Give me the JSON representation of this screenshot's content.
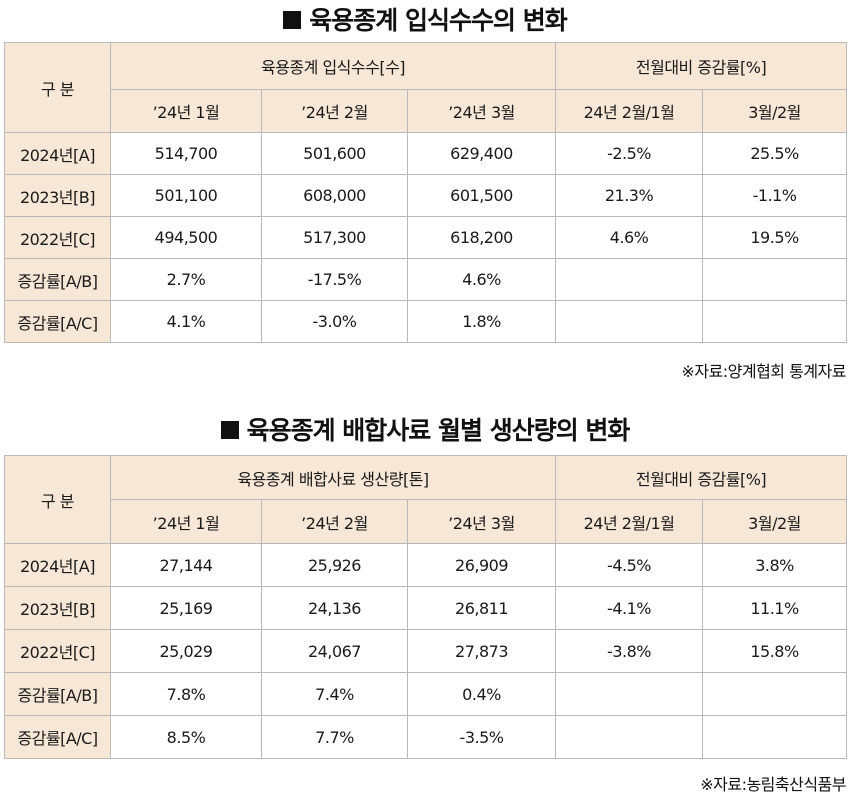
{
  "table1": {
    "title": "육용종계 입식수수의 변화",
    "header": {
      "category": "구 분",
      "group1": "육용종계 입식수수[수]",
      "group2": "전월대비 증감률[%]",
      "months": [
        "’24년 1월",
        "’24년 2월",
        "’24년 3월"
      ],
      "changes": [
        "24년 2월/1월",
        "3월/2월"
      ]
    },
    "rows": [
      {
        "label": "2024년[A]",
        "values": [
          "514,700",
          "501,600",
          "629,400",
          "-2.5%",
          "25.5%"
        ]
      },
      {
        "label": "2023년[B]",
        "values": [
          "501,100",
          "608,000",
          "601,500",
          "21.3%",
          "-1.1%"
        ]
      },
      {
        "label": "2022년[C]",
        "values": [
          "494,500",
          "517,300",
          "618,200",
          "4.6%",
          "19.5%"
        ]
      },
      {
        "label": "증감률[A/B]",
        "values": [
          "2.7%",
          "-17.5%",
          "4.6%",
          "",
          ""
        ]
      },
      {
        "label": "증감률[A/C]",
        "values": [
          "4.1%",
          "-3.0%",
          "1.8%",
          "",
          ""
        ]
      }
    ],
    "source": "※자료:양계협회 통계자료"
  },
  "table2": {
    "title": "육용종계 배합사료 월별 생산량의 변화",
    "header": {
      "category": "구 분",
      "group1": "육용종계 배합사료 생산량[톤]",
      "group2": "전월대비 증감률[%]",
      "months": [
        "’24년 1월",
        "’24년 2월",
        "’24년 3월"
      ],
      "changes": [
        "24년 2월/1월",
        "3월/2월"
      ]
    },
    "rows": [
      {
        "label": "2024년[A]",
        "values": [
          "27,144",
          "25,926",
          "26,909",
          "-4.5%",
          "3.8%"
        ]
      },
      {
        "label": "2023년[B]",
        "values": [
          "25,169",
          "24,136",
          "26,811",
          "-4.1%",
          "11.1%"
        ]
      },
      {
        "label": "2022년[C]",
        "values": [
          "25,029",
          "24,067",
          "27,873",
          "-3.8%",
          "15.8%"
        ]
      },
      {
        "label": "증감률[A/B]",
        "values": [
          "7.8%",
          "7.4%",
          "0.4%",
          "",
          ""
        ]
      },
      {
        "label": "증감률[A/C]",
        "values": [
          "8.5%",
          "7.7%",
          "-3.5%",
          "",
          ""
        ]
      }
    ],
    "source": "※자료:농림축산식품부"
  }
}
